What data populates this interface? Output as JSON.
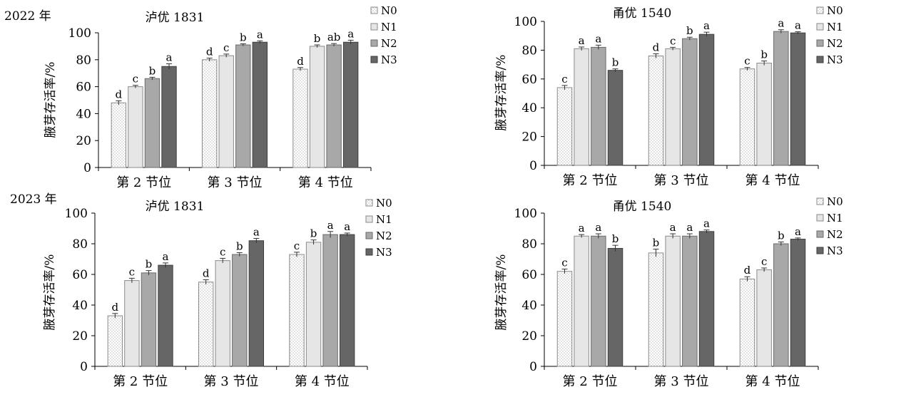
{
  "years": [
    "2022 年",
    "2023 年"
  ],
  "chart_data": [
    {
      "type": "bar",
      "title": "泸优 1831",
      "ylabel": "腋芽存活率/%",
      "categories": [
        "第 2 节位",
        "第 3 节位",
        "第 4 节位"
      ],
      "ylim": [
        0,
        100
      ],
      "yticks": [
        0,
        20,
        40,
        60,
        80,
        100
      ],
      "legend_position": "right",
      "series": [
        {
          "name": "N0",
          "values": [
            48,
            80,
            73
          ],
          "errors": [
            1.5,
            1.2,
            1.2
          ],
          "letters": [
            "d",
            "d",
            "d"
          ]
        },
        {
          "name": "N1",
          "values": [
            60,
            83,
            90
          ],
          "errors": [
            1.0,
            1.2,
            1.0
          ],
          "letters": [
            "c",
            "c",
            "b"
          ]
        },
        {
          "name": "N2",
          "values": [
            66,
            91,
            91
          ],
          "errors": [
            1.0,
            0.8,
            1.0
          ],
          "letters": [
            "b",
            "b",
            "ab"
          ]
        },
        {
          "name": "N3",
          "values": [
            75,
            93,
            93
          ],
          "errors": [
            2.0,
            1.0,
            1.5
          ],
          "letters": [
            "a",
            "a",
            "a"
          ]
        }
      ]
    },
    {
      "type": "bar",
      "title": "甬优 1540",
      "ylabel": "腋芽存活率/%",
      "categories": [
        "第 2 节位",
        "第 3 节位",
        "第 4 节位"
      ],
      "ylim": [
        0,
        100
      ],
      "yticks": [
        0,
        20,
        40,
        60,
        80,
        100
      ],
      "legend_position": "right",
      "series": [
        {
          "name": "N0",
          "values": [
            54,
            76,
            67
          ],
          "errors": [
            1.5,
            1.5,
            1.0
          ],
          "letters": [
            "c",
            "d",
            "c"
          ]
        },
        {
          "name": "N1",
          "values": [
            81,
            81,
            71
          ],
          "errors": [
            1.2,
            1.0,
            1.5
          ],
          "letters": [
            "a",
            "c",
            "b"
          ]
        },
        {
          "name": "N2",
          "values": [
            82,
            88,
            93
          ],
          "errors": [
            1.5,
            1.0,
            1.2
          ],
          "letters": [
            "a",
            "b",
            "a"
          ]
        },
        {
          "name": "N3",
          "values": [
            66,
            91,
            92
          ],
          "errors": [
            1.0,
            1.5,
            0.8
          ],
          "letters": [
            "b",
            "a",
            "a"
          ]
        }
      ]
    },
    {
      "type": "bar",
      "title": "泸优 1831",
      "ylabel": "腋芽存活率/%",
      "categories": [
        "第 2 节位",
        "第 3 节位",
        "第 4 节位"
      ],
      "ylim": [
        0,
        100
      ],
      "yticks": [
        0,
        20,
        40,
        60,
        80,
        100
      ],
      "legend_position": "right",
      "series": [
        {
          "name": "N0",
          "values": [
            33,
            55,
            73
          ],
          "errors": [
            1.5,
            1.5,
            1.5
          ],
          "letters": [
            "d",
            "d",
            "c"
          ]
        },
        {
          "name": "N1",
          "values": [
            56,
            69,
            81
          ],
          "errors": [
            1.5,
            1.5,
            1.5
          ],
          "letters": [
            "c",
            "c",
            "b"
          ]
        },
        {
          "name": "N2",
          "values": [
            61,
            73,
            86
          ],
          "errors": [
            1.5,
            1.2,
            2.0
          ],
          "letters": [
            "b",
            "b",
            "a"
          ]
        },
        {
          "name": "N3",
          "values": [
            66,
            82,
            86
          ],
          "errors": [
            1.5,
            1.5,
            1.0
          ],
          "letters": [
            "a",
            "a",
            "a"
          ]
        }
      ]
    },
    {
      "type": "bar",
      "title": "甬优 1540",
      "ylabel": "腋芽存活率/%",
      "categories": [
        "第 2 节位",
        "第 3 节位",
        "第 4 节位"
      ],
      "ylim": [
        0,
        100
      ],
      "yticks": [
        0,
        20,
        40,
        60,
        80,
        100
      ],
      "legend_position": "right",
      "series": [
        {
          "name": "N0",
          "values": [
            62,
            74,
            57
          ],
          "errors": [
            1.5,
            2.5,
            1.5
          ],
          "letters": [
            "c",
            "b",
            "d"
          ]
        },
        {
          "name": "N1",
          "values": [
            85,
            85,
            63
          ],
          "errors": [
            1.0,
            1.5,
            1.2
          ],
          "letters": [
            "a",
            "a",
            "c"
          ]
        },
        {
          "name": "N2",
          "values": [
            85,
            85,
            80
          ],
          "errors": [
            1.5,
            1.5,
            1.2
          ],
          "letters": [
            "a",
            "a",
            "b"
          ]
        },
        {
          "name": "N3",
          "values": [
            77,
            88,
            83
          ],
          "errors": [
            2.0,
            1.0,
            0.8
          ],
          "letters": [
            "b",
            "a",
            "a"
          ]
        }
      ]
    }
  ]
}
